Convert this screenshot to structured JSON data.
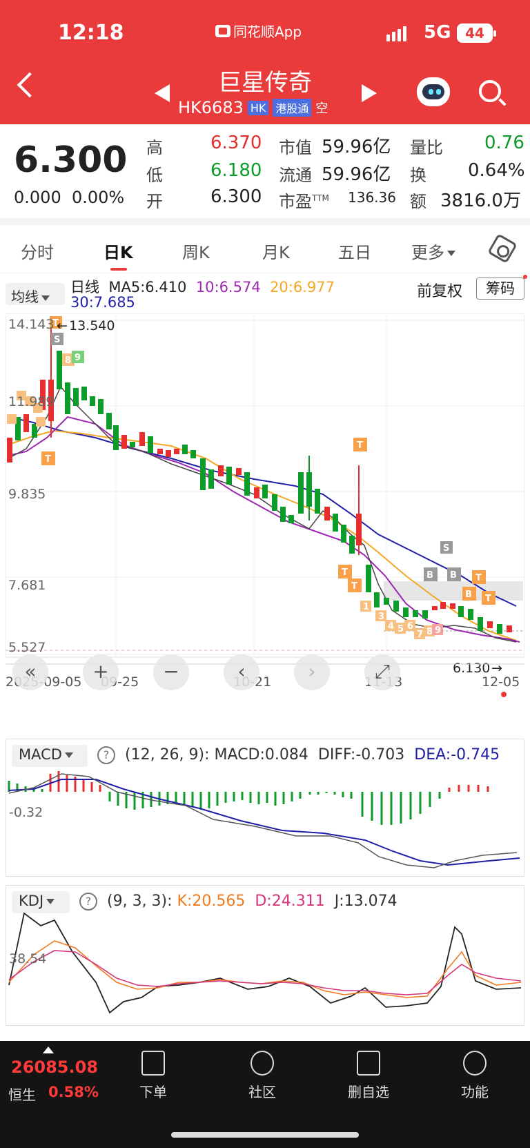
{
  "status": {
    "time": "12:18",
    "app": "同花顺App",
    "network": "5G",
    "battery": "44"
  },
  "stock": {
    "name": "巨星传奇",
    "code": "HK6683",
    "tag_hk": "HK",
    "tag_connect": "港股通",
    "tag_short": "空"
  },
  "quote": {
    "price": "6.300",
    "change": "0.000",
    "change_pct": "0.00%",
    "high_label": "高",
    "high": "6.370",
    "low_label": "低",
    "low": "6.180",
    "open_label": "开",
    "open": "6.300",
    "mcap_label": "市值",
    "mcap": "59.96亿",
    "float_label": "流通",
    "float": "59.96亿",
    "pe_label": "市盈",
    "pe_sup": "TTM",
    "pe": "136.36",
    "vr_label": "量比",
    "vr": "0.76",
    "turnover_label": "换",
    "turnover": "0.64%",
    "amount_label": "额",
    "amount": "3816.0万"
  },
  "tabs": [
    {
      "label": "分时"
    },
    {
      "label": "日K"
    },
    {
      "label": "周K"
    },
    {
      "label": "月K"
    },
    {
      "label": "五日"
    },
    {
      "label": "更多"
    }
  ],
  "ma": {
    "button": "均线",
    "period": "日线",
    "ma5": "MA5:6.410",
    "ma10": "10:6.574",
    "ma20": "20:6.977",
    "ma30": "30:7.685",
    "adjust": "前复权",
    "chips": "筹码",
    "colors": {
      "ma5": "#8a2be2",
      "ma10": "#9c27b0",
      "ma20": "#f5a623",
      "ma30": "#1f1fa8"
    }
  },
  "kline": {
    "y_labels": [
      "14.143",
      "11.989",
      "9.835",
      "7.681",
      "5.527"
    ],
    "high_mark": "13.540",
    "low_mark": "6.130",
    "x_labels": [
      "2025-09-05",
      "09-25",
      "10-21",
      "11-13",
      "12-05"
    ]
  },
  "macd": {
    "button": "MACD",
    "params": "(12, 26, 9):",
    "macd": "MACD:0.084",
    "diff": "DIFF:-0.703",
    "dea": "DEA:-0.745",
    "y_label": "-0.32"
  },
  "kdj": {
    "button": "KDJ",
    "params": "(9, 3, 3):",
    "k": "K:20.565",
    "d": "D:24.311",
    "j": "J:13.074",
    "y_label": "38.54"
  },
  "bottom": {
    "index_value": "26085.08",
    "index_name": "恒生",
    "index_pct": "0.58%",
    "nav": [
      {
        "label": "下单"
      },
      {
        "label": "社区"
      },
      {
        "label": "删自选"
      },
      {
        "label": "功能"
      }
    ]
  }
}
